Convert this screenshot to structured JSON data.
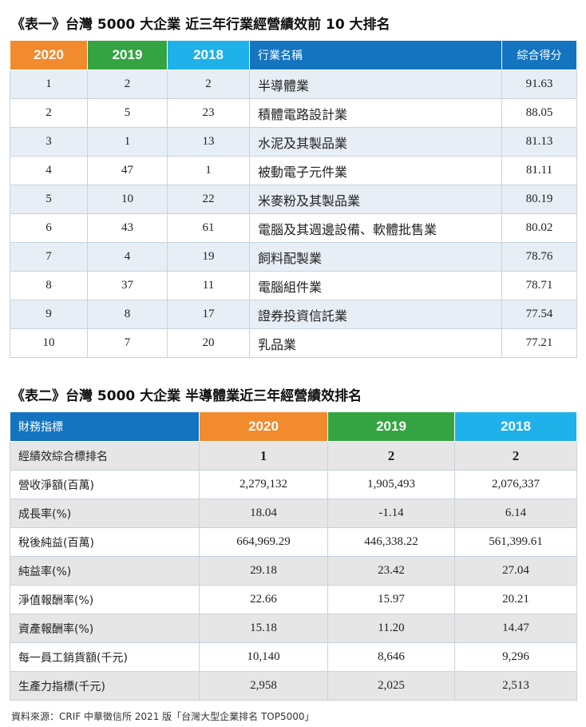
{
  "table1": {
    "title": "《表一》台灣 5000 大企業 近三年行業經營績效前 10 大排名",
    "headers": [
      "2020",
      "2019",
      "2018",
      "行業名稱",
      "綜合得分"
    ],
    "rows": [
      [
        "1",
        "2",
        "2",
        "半導體業",
        "91.63"
      ],
      [
        "2",
        "5",
        "23",
        "積體電路設計業",
        "88.05"
      ],
      [
        "3",
        "1",
        "13",
        "水泥及其製品業",
        "81.13"
      ],
      [
        "4",
        "47",
        "1",
        "被動電子元件業",
        "81.11"
      ],
      [
        "5",
        "10",
        "22",
        "米麥粉及其製品業",
        "80.19"
      ],
      [
        "6",
        "43",
        "61",
        "電腦及其週邊設備、軟體批售業",
        "80.02"
      ],
      [
        "7",
        "4",
        "19",
        "飼料配製業",
        "78.76"
      ],
      [
        "8",
        "37",
        "11",
        "電腦組件業",
        "78.71"
      ],
      [
        "9",
        "8",
        "17",
        "證券投資信託業",
        "77.54"
      ],
      [
        "10",
        "7",
        "20",
        "乳品業",
        "77.21"
      ]
    ]
  },
  "table2": {
    "title": "《表二》台灣 5000 大企業 半導體業近三年經營績效排名",
    "headers": [
      "財務指標",
      "2020",
      "2019",
      "2018"
    ],
    "rows": [
      [
        "經績效綜合標排名",
        "1",
        "2",
        "2"
      ],
      [
        "營收淨額(百萬)",
        "2,279,132",
        "1,905,493",
        "2,076,337"
      ],
      [
        "成長率(%)",
        "18.04",
        "-1.14",
        "6.14"
      ],
      [
        "稅後純益(百萬)",
        "664,969.29",
        "446,338.22",
        "561,399.61"
      ],
      [
        "純益率(%)",
        "29.18",
        "23.42",
        "27.04"
      ],
      [
        "淨值報酬率(%)",
        "22.66",
        "15.97",
        "20.21"
      ],
      [
        "資產報酬率(%)",
        "15.18",
        "11.20",
        "14.47"
      ],
      [
        "每一員工銷貨額(千元)",
        "10,140",
        "8,646",
        "9,296"
      ],
      [
        "生產力指標(千元)",
        "2,958",
        "2,025",
        "2,513"
      ]
    ]
  },
  "source": "資料來源：CRIF 中華徵信所 2021 版「台灣大型企業排名 TOP5000」",
  "colors": {
    "y2020": "#f28a2e",
    "y2019": "#34a442",
    "y2018": "#1fb1ea",
    "header_blue": "#1474bf",
    "row_alt_table1": "#e8eef6",
    "row_alt_table2": "#e6e6e6"
  }
}
